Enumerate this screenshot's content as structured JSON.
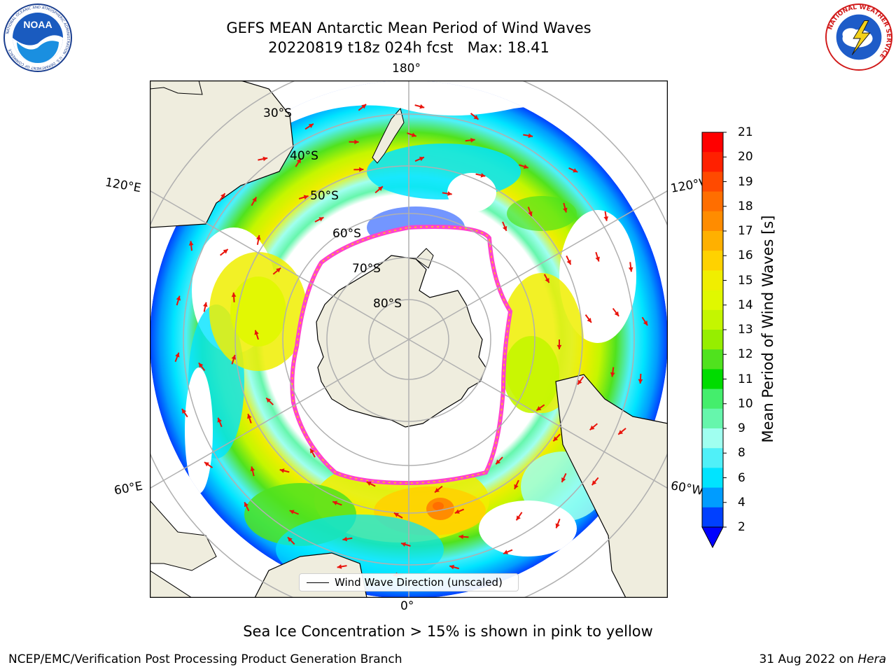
{
  "header": {
    "title_line1": "GEFS MEAN Antarctic Mean Period of Wind Waves",
    "title_line2": "20220819 t18z 024h fcst   Max: 18.41"
  },
  "logos": {
    "left": {
      "name": "NOAA",
      "text": "NOAA",
      "ring_text": "NATIONAL OCEANIC AND ATMOSPHERIC ADMINISTRATION · U.S. DEPARTMENT OF COMMERCE"
    },
    "right": {
      "name": "National Weather Service",
      "ring_text": "NATIONAL WEATHER SERVICE"
    }
  },
  "map": {
    "projection": "South Polar Stereographic",
    "longitude_labels": {
      "top": "180°",
      "bottom": "0°",
      "left_upper": "120°E",
      "left_lower": "60°E",
      "right_upper": "120°W",
      "right_lower": "60°W"
    },
    "latitude_labels": [
      "30°S",
      "40°S",
      "50°S",
      "60°S",
      "70°S",
      "80°S"
    ],
    "colors": {
      "land": "#efedde",
      "ocean_no_data": "#ffffff",
      "grid": "#b0b0b0",
      "sea_ice_edge": "#ff44cc",
      "arrow": "#e8140c"
    }
  },
  "colorbar": {
    "label": "Mean Period of Wind Waves [s]",
    "ticks": [
      "21",
      "20",
      "19",
      "18",
      "17",
      "16",
      "15",
      "14",
      "13",
      "12",
      "11",
      "10",
      "9",
      "8",
      "6",
      "4",
      "2"
    ],
    "colors_top_to_bottom": [
      "#ff0000",
      "#ff2000",
      "#ff4a00",
      "#ff6e00",
      "#ff8c00",
      "#ffb000",
      "#ffd200",
      "#f0ee00",
      "#e0f800",
      "#c4f600",
      "#96ee00",
      "#50e21e",
      "#00dc00",
      "#44ee6c",
      "#66f6ac",
      "#a0fff0",
      "#50f0f8",
      "#00e4ff",
      "#009cff",
      "#0040ff"
    ],
    "extend_min_color": "#0000ff"
  },
  "legend": {
    "label": "Wind Wave Direction (unscaled)"
  },
  "notes": {
    "sea_ice": "Sea Ice Concentration > 15% is shown in pink to yellow"
  },
  "footer": {
    "left": "NCEP/EMC/Verification Post Processing Product Generation Branch",
    "right_date": "31 Aug 2022 on ",
    "right_machine": "Hera"
  }
}
